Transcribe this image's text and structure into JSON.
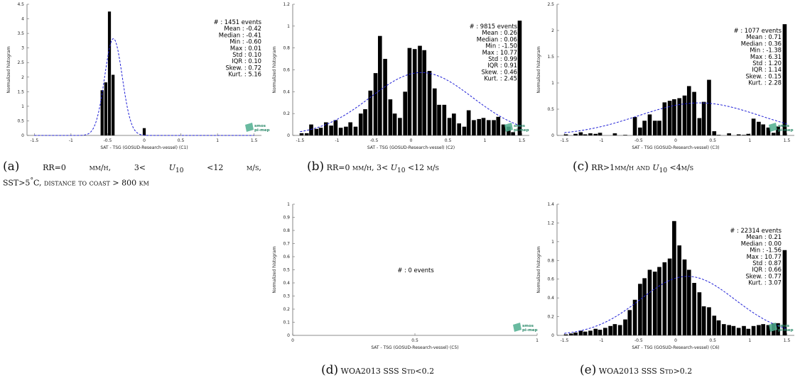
{
  "chart_data": [
    {
      "id": "C1",
      "type": "bar",
      "xlabel": "SAT - TSG (GOSUD-Research-vessel) (C1)",
      "ylabel": "Normalized histogram",
      "xlim": [
        -1.6,
        1.6
      ],
      "ylim": [
        0,
        4.5
      ],
      "xticks": [
        "-1.5",
        "-1",
        "-0.5",
        "0",
        "0.5",
        "1",
        "1.5"
      ],
      "yticks": [
        "0",
        "0.5",
        "1",
        "1.5",
        "2",
        "2.5",
        "3",
        "3.5",
        "4",
        "4.5"
      ],
      "bin_width": 0.05,
      "bars": [
        {
          "x": -0.575,
          "y": 1.55
        },
        {
          "x": -0.525,
          "y": 1.82
        },
        {
          "x": -0.475,
          "y": 4.25
        },
        {
          "x": -0.425,
          "y": 2.08
        },
        {
          "x": 0.0,
          "y": 0.25
        }
      ],
      "fit": {
        "type": "normal",
        "mean": -0.42,
        "std": 0.12
      },
      "stats": [
        "# : 1451 events",
        "Mean : -0.42",
        "Median : -0.41",
        "Min : -0.60",
        "Max : 0.01",
        "Std : 0.10",
        "IQR : 0.10",
        "Skew. : 0.72",
        "Kurt. : 5.16"
      ],
      "logo": [
        "smos",
        "pi-mep"
      ]
    },
    {
      "id": "C2",
      "type": "bar",
      "xlabel": "SAT - TSG (GOSUD-Research-vessel) (C2)",
      "ylabel": "Normalized histogram",
      "xlim": [
        -1.6,
        1.6
      ],
      "ylim": [
        0,
        1.2
      ],
      "xticks": [
        "-1.5",
        "-1",
        "-0.5",
        "0",
        "0.5",
        "1",
        "1.5"
      ],
      "yticks": [
        "0",
        "0.2",
        "0.4",
        "0.6",
        "0.8",
        "1",
        "1.2"
      ],
      "bin_width": 0.066,
      "bars": [
        {
          "x": -1.48,
          "y": 0.02
        },
        {
          "x": -1.41,
          "y": 0.02
        },
        {
          "x": -1.35,
          "y": 0.1
        },
        {
          "x": -1.28,
          "y": 0.06
        },
        {
          "x": -1.22,
          "y": 0.07
        },
        {
          "x": -1.15,
          "y": 0.12
        },
        {
          "x": -1.08,
          "y": 0.09
        },
        {
          "x": -1.02,
          "y": 0.14
        },
        {
          "x": -0.95,
          "y": 0.07
        },
        {
          "x": -0.88,
          "y": 0.08
        },
        {
          "x": -0.82,
          "y": 0.12
        },
        {
          "x": -0.75,
          "y": 0.08
        },
        {
          "x": -0.68,
          "y": 0.2
        },
        {
          "x": -0.62,
          "y": 0.24
        },
        {
          "x": -0.55,
          "y": 0.41
        },
        {
          "x": -0.48,
          "y": 0.57
        },
        {
          "x": -0.42,
          "y": 0.91
        },
        {
          "x": -0.35,
          "y": 0.7
        },
        {
          "x": -0.28,
          "y": 0.33
        },
        {
          "x": -0.22,
          "y": 0.2
        },
        {
          "x": -0.15,
          "y": 0.16
        },
        {
          "x": -0.08,
          "y": 0.4
        },
        {
          "x": -0.02,
          "y": 0.8
        },
        {
          "x": 0.05,
          "y": 0.79
        },
        {
          "x": 0.12,
          "y": 0.82
        },
        {
          "x": 0.18,
          "y": 0.78
        },
        {
          "x": 0.25,
          "y": 0.59
        },
        {
          "x": 0.32,
          "y": 0.43
        },
        {
          "x": 0.38,
          "y": 0.28
        },
        {
          "x": 0.45,
          "y": 0.28
        },
        {
          "x": 0.52,
          "y": 0.16
        },
        {
          "x": 0.58,
          "y": 0.2
        },
        {
          "x": 0.65,
          "y": 0.11
        },
        {
          "x": 0.72,
          "y": 0.08
        },
        {
          "x": 0.78,
          "y": 0.23
        },
        {
          "x": 0.85,
          "y": 0.14
        },
        {
          "x": 0.92,
          "y": 0.15
        },
        {
          "x": 0.98,
          "y": 0.16
        },
        {
          "x": 1.05,
          "y": 0.14
        },
        {
          "x": 1.12,
          "y": 0.14
        },
        {
          "x": 1.18,
          "y": 0.17
        },
        {
          "x": 1.25,
          "y": 0.1
        },
        {
          "x": 1.32,
          "y": 0.08
        },
        {
          "x": 1.38,
          "y": 0.03
        },
        {
          "x": 1.47,
          "y": 1.05
        }
      ],
      "fit": {
        "type": "normal",
        "mean": 0.14,
        "std": 0.69,
        "peak": 0.575
      },
      "stats": [
        "# : 9815 events",
        "Mean : 0.26",
        "Median : 0.06",
        "Min : -1.50",
        "Max : 10.77",
        "Std : 0.99",
        "IQR : 0.91",
        "Skew. : 0.46",
        "Kurt. : 2.45"
      ],
      "logo": [
        "smos",
        "pi-mep"
      ]
    },
    {
      "id": "C3",
      "type": "bar",
      "xlabel": "SAT - TSG (GOSUD-Research-vessel) (C3)",
      "ylabel": "Normalized histogram",
      "xlim": [
        -1.6,
        1.6
      ],
      "ylim": [
        0,
        2.5
      ],
      "xticks": [
        "-1.5",
        "-1",
        "-0.5",
        "0",
        "0.5",
        "1",
        "1.5"
      ],
      "yticks": [
        "0",
        "0.5",
        "1",
        "1.5",
        "2",
        "2.5"
      ],
      "bin_width": 0.066,
      "bars": [
        {
          "x": -1.48,
          "y": 0.02
        },
        {
          "x": -1.35,
          "y": 0.03
        },
        {
          "x": -1.28,
          "y": 0.06
        },
        {
          "x": -1.22,
          "y": 0.02
        },
        {
          "x": -1.15,
          "y": 0.04
        },
        {
          "x": -1.08,
          "y": 0.03
        },
        {
          "x": -1.02,
          "y": 0.05
        },
        {
          "x": -0.82,
          "y": 0.04
        },
        {
          "x": -0.68,
          "y": 0.01
        },
        {
          "x": -0.55,
          "y": 0.35
        },
        {
          "x": -0.48,
          "y": 0.15
        },
        {
          "x": -0.42,
          "y": 0.28
        },
        {
          "x": -0.35,
          "y": 0.4
        },
        {
          "x": -0.28,
          "y": 0.28
        },
        {
          "x": -0.22,
          "y": 0.28
        },
        {
          "x": -0.15,
          "y": 0.63
        },
        {
          "x": -0.08,
          "y": 0.66
        },
        {
          "x": -0.02,
          "y": 0.69
        },
        {
          "x": 0.05,
          "y": 0.71
        },
        {
          "x": 0.12,
          "y": 0.76
        },
        {
          "x": 0.18,
          "y": 0.94
        },
        {
          "x": 0.25,
          "y": 0.83
        },
        {
          "x": 0.32,
          "y": 0.33
        },
        {
          "x": 0.38,
          "y": 0.64
        },
        {
          "x": 0.45,
          "y": 1.06
        },
        {
          "x": 0.52,
          "y": 0.08
        },
        {
          "x": 0.58,
          "y": 0.01
        },
        {
          "x": 0.72,
          "y": 0.04
        },
        {
          "x": 0.85,
          "y": 0.02
        },
        {
          "x": 0.92,
          "y": 0.01
        },
        {
          "x": 0.98,
          "y": 0.03
        },
        {
          "x": 1.05,
          "y": 0.32
        },
        {
          "x": 1.12,
          "y": 0.26
        },
        {
          "x": 1.18,
          "y": 0.21
        },
        {
          "x": 1.25,
          "y": 0.15
        },
        {
          "x": 1.32,
          "y": 0.05
        },
        {
          "x": 1.38,
          "y": 0.17
        },
        {
          "x": 1.47,
          "y": 2.12
        }
      ],
      "fit": {
        "type": "normal",
        "mean": 0.32,
        "std": 0.82,
        "peak": 0.62
      },
      "stats": [
        "# : 1077 events",
        "Mean : 0.71",
        "Median : 0.36",
        "Min : -1.38",
        "Max : 6.31",
        "Std : 1.20",
        "IQR : 1.14",
        "Skew. : 0.15",
        "Kurt. : 2.28"
      ],
      "logo": [
        "smos",
        "pi-mep"
      ]
    },
    {
      "id": "C5",
      "type": "bar",
      "xlabel": "SAT - TSG (GOSUD-Research-vessel) (C5)",
      "ylabel": "Normalized histogram",
      "xlim": [
        0,
        1
      ],
      "ylim": [
        0,
        1
      ],
      "xticks": [
        "0",
        "0.5",
        "1"
      ],
      "yticks": [
        "0",
        "0.1",
        "0.2",
        "0.3",
        "0.4",
        "0.5",
        "0.6",
        "0.7",
        "0.8",
        "0.9",
        "1"
      ],
      "bin_width": 0.05,
      "bars": [],
      "fit": null,
      "stats": [
        "# : 0 events"
      ],
      "logo": [
        "smos",
        "pi-mep"
      ]
    },
    {
      "id": "C6",
      "type": "bar",
      "xlabel": "SAT - TSG (GOSUD-Research-vessel) (C6)",
      "ylabel": "Normalized histogram",
      "xlim": [
        -1.6,
        1.6
      ],
      "ylim": [
        0,
        1.4
      ],
      "xticks": [
        "-1.5",
        "-1",
        "-0.5",
        "0",
        "0.5",
        "1",
        "1.5"
      ],
      "yticks": [
        "0",
        "0.2",
        "0.4",
        "0.6",
        "0.8",
        "1",
        "1.2",
        "1.4"
      ],
      "bin_width": 0.066,
      "bars": [
        {
          "x": -1.48,
          "y": 0.01
        },
        {
          "x": -1.41,
          "y": 0.02
        },
        {
          "x": -1.35,
          "y": 0.03
        },
        {
          "x": -1.28,
          "y": 0.05
        },
        {
          "x": -1.22,
          "y": 0.04
        },
        {
          "x": -1.15,
          "y": 0.05
        },
        {
          "x": -1.08,
          "y": 0.07
        },
        {
          "x": -1.02,
          "y": 0.06
        },
        {
          "x": -0.95,
          "y": 0.08
        },
        {
          "x": -0.88,
          "y": 0.1
        },
        {
          "x": -0.82,
          "y": 0.12
        },
        {
          "x": -0.75,
          "y": 0.11
        },
        {
          "x": -0.68,
          "y": 0.17
        },
        {
          "x": -0.62,
          "y": 0.27
        },
        {
          "x": -0.55,
          "y": 0.38
        },
        {
          "x": -0.48,
          "y": 0.55
        },
        {
          "x": -0.42,
          "y": 0.61
        },
        {
          "x": -0.35,
          "y": 0.7
        },
        {
          "x": -0.28,
          "y": 0.68
        },
        {
          "x": -0.22,
          "y": 0.73
        },
        {
          "x": -0.15,
          "y": 0.78
        },
        {
          "x": -0.08,
          "y": 0.82
        },
        {
          "x": -0.02,
          "y": 1.22
        },
        {
          "x": 0.05,
          "y": 0.96
        },
        {
          "x": 0.12,
          "y": 0.81
        },
        {
          "x": 0.18,
          "y": 0.7
        },
        {
          "x": 0.25,
          "y": 0.56
        },
        {
          "x": 0.32,
          "y": 0.46
        },
        {
          "x": 0.38,
          "y": 0.31
        },
        {
          "x": 0.45,
          "y": 0.3
        },
        {
          "x": 0.52,
          "y": 0.21
        },
        {
          "x": 0.58,
          "y": 0.16
        },
        {
          "x": 0.65,
          "y": 0.12
        },
        {
          "x": 0.72,
          "y": 0.11
        },
        {
          "x": 0.78,
          "y": 0.1
        },
        {
          "x": 0.85,
          "y": 0.08
        },
        {
          "x": 0.92,
          "y": 0.1
        },
        {
          "x": 0.98,
          "y": 0.07
        },
        {
          "x": 1.05,
          "y": 0.1
        },
        {
          "x": 1.12,
          "y": 0.11
        },
        {
          "x": 1.18,
          "y": 0.12
        },
        {
          "x": 1.25,
          "y": 0.11
        },
        {
          "x": 1.32,
          "y": 0.13
        },
        {
          "x": 1.38,
          "y": 0.13
        },
        {
          "x": 1.47,
          "y": 0.91
        }
      ],
      "fit": {
        "type": "normal",
        "mean": 0.16,
        "std": 0.64,
        "peak": 0.63
      },
      "stats": [
        "# : 22314 events",
        "Mean : 0.21",
        "Median : 0.00",
        "Min : -1.56",
        "Max : 10.77",
        "Std : 0.87",
        "IQR : 0.66",
        "Skew. : 0.77",
        "Kurt. : 3.07"
      ],
      "logo": [
        "smos",
        "pi-mep"
      ]
    }
  ],
  "captions": {
    "a": {
      "label": "(a)",
      "line1": [
        "RR=0",
        "mm/h,",
        "3<",
        "U",
        "10",
        "<12",
        "m/s,"
      ],
      "line2": [
        "SST>5",
        "°",
        "C, distance to coast > 800 km"
      ]
    },
    "b": {
      "label": "(b)",
      "parts": [
        "RR=0 mm/h, 3< ",
        "U",
        "10",
        " <12 m/s"
      ]
    },
    "c": {
      "label": "(c)",
      "parts": [
        "RR>1mm/h and ",
        "U",
        "10",
        " <4m/s"
      ]
    },
    "d": {
      "label": "(d)",
      "text": "WOA2013 SSS Std<0.2"
    },
    "e": {
      "label": "(e)",
      "text": "WOA2013 SSS Std>0.2"
    }
  },
  "colors": {
    "bar": "#000000",
    "fit": "#1f1fd6",
    "axis": "#666666",
    "logo_shape": "#4fae8f",
    "logo_text": "#2e8a6b"
  }
}
